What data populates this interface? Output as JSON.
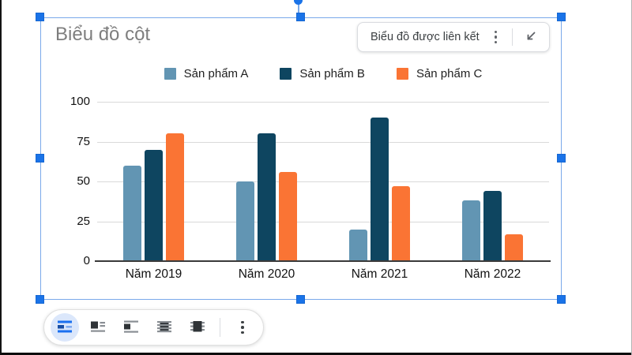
{
  "chart_data": {
    "type": "bar",
    "title": "Biểu đồ cột",
    "categories": [
      "Năm 2019",
      "Năm 2020",
      "Năm 2021",
      "Năm 2022"
    ],
    "series": [
      {
        "name": "Sản phẩm A",
        "color": "#6295b3",
        "values": [
          60,
          50,
          20,
          38
        ]
      },
      {
        "name": "Sản phẩm B",
        "color": "#0e4560",
        "values": [
          70,
          80,
          90,
          44
        ]
      },
      {
        "name": "Sản phẩm C",
        "color": "#fa7434",
        "values": [
          80,
          56,
          47,
          17
        ]
      }
    ],
    "xlabel": "",
    "ylabel": "",
    "ylim": [
      0,
      100
    ],
    "y_ticks": [
      100,
      75,
      50,
      25,
      0
    ],
    "grid": true,
    "legend_position": "top"
  },
  "badge": {
    "label": "Biểu đồ được liên kết",
    "menu_icon": "vertical-dots-icon",
    "collapse_icon": "collapse-arrow-icon"
  },
  "toolbar": {
    "selected_index": 0,
    "icons": [
      "in-line-icon",
      "wrap-text-icon",
      "break-text-icon",
      "behind-text-icon",
      "in-front-text-icon",
      "more-options-icon"
    ]
  },
  "colors": {
    "selection_handle": "#1a73e8",
    "selection_border": "#7aa9ea",
    "gridline": "#d9d9d9",
    "axis": "#3a3a3a",
    "title_text": "#7e7e7e",
    "selected_circle": "#dbe7fb"
  }
}
